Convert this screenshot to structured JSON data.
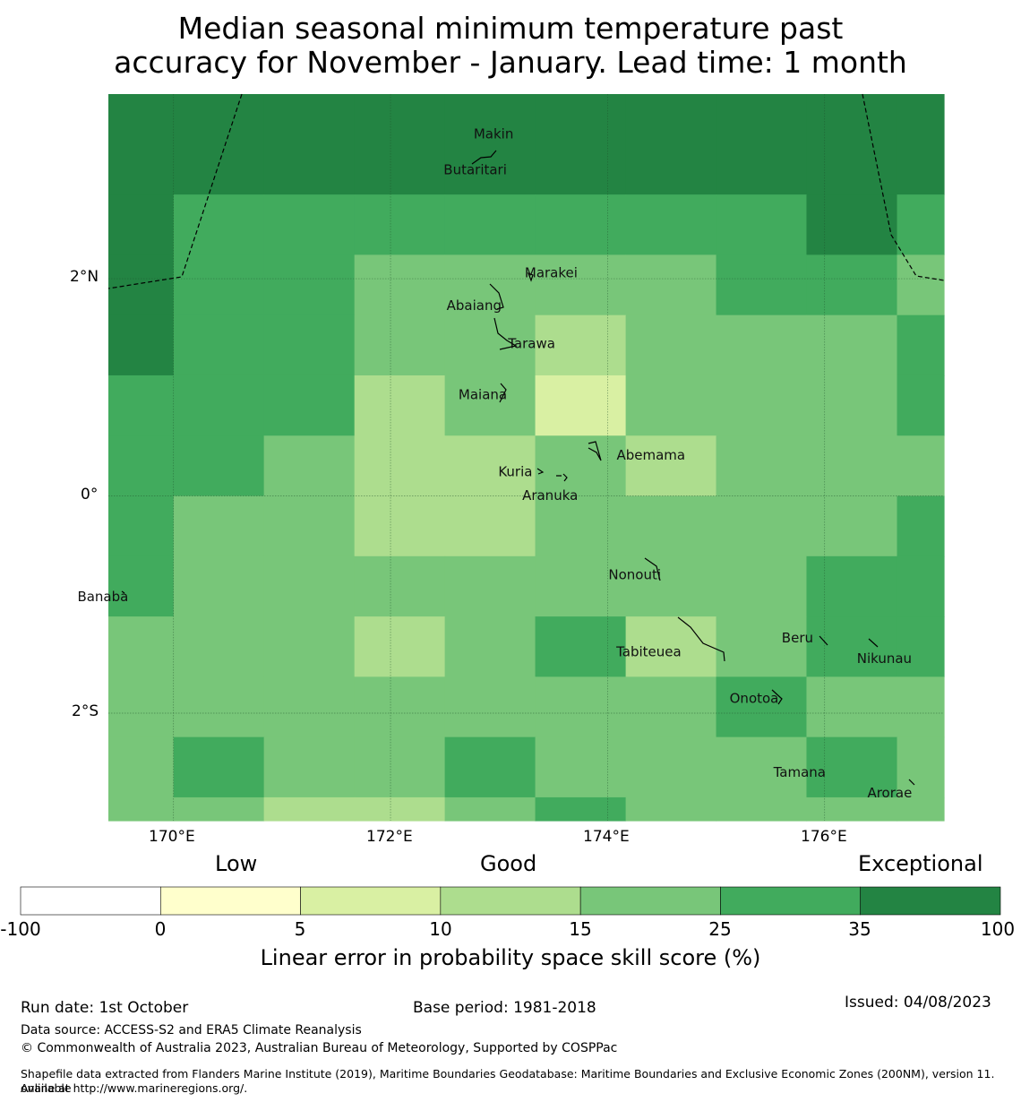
{
  "title": {
    "line1": "Median seasonal minimum temperature past",
    "line2": "accuracy for November - January. Lead time: 1 month"
  },
  "map": {
    "lat_ticks": [
      "2°N",
      "0°",
      "2°S"
    ],
    "lon_ticks": [
      "170°E",
      "172°E",
      "174°E",
      "176°E"
    ],
    "places": [
      {
        "name": "Makin",
        "lon": 172.95,
        "lat": 3.33
      },
      {
        "name": "Butaritari",
        "lon": 172.78,
        "lat": 3.0
      },
      {
        "name": "Marakei",
        "lon": 173.48,
        "lat": 2.05
      },
      {
        "name": "Abaiang",
        "lon": 172.77,
        "lat": 1.75
      },
      {
        "name": "Tarawa",
        "lon": 173.3,
        "lat": 1.4
      },
      {
        "name": "Maiana",
        "lon": 172.85,
        "lat": 0.93
      },
      {
        "name": "Abemama",
        "lon": 174.4,
        "lat": 0.37
      },
      {
        "name": "Kuria",
        "lon": 173.15,
        "lat": 0.22
      },
      {
        "name": "Aranuka",
        "lon": 173.47,
        "lat": 0.0
      },
      {
        "name": "Nonouti",
        "lon": 174.25,
        "lat": -0.73
      },
      {
        "name": "Banaba",
        "lon": 169.35,
        "lat": -0.93
      },
      {
        "name": "Beru",
        "lon": 175.75,
        "lat": -1.31
      },
      {
        "name": "Tabiteuea",
        "lon": 174.38,
        "lat": -1.44
      },
      {
        "name": "Nikunau",
        "lon": 176.55,
        "lat": -1.5
      },
      {
        "name": "Onotoa",
        "lon": 175.35,
        "lat": -1.87
      },
      {
        "name": "Tamana",
        "lon": 175.77,
        "lat": -2.55
      },
      {
        "name": "Arorae",
        "lon": 176.6,
        "lat": -2.74
      }
    ]
  },
  "chart_data": {
    "type": "heatmap",
    "lon_edges": [
      169.4,
      170.0,
      170.833,
      171.667,
      172.5,
      173.333,
      174.167,
      175.0,
      175.833,
      176.667,
      177.1
    ],
    "lat_edges": [
      3.7,
      2.775,
      2.22,
      1.665,
      1.11,
      0.555,
      0.0,
      -0.555,
      -1.11,
      -1.665,
      -2.22,
      -2.775,
      -2.99
    ],
    "levels": [
      [
        6,
        6,
        6,
        6,
        6,
        6,
        6,
        6,
        6,
        6
      ],
      [
        6,
        5,
        5,
        5,
        5,
        5,
        5,
        5,
        6,
        5
      ],
      [
        6,
        5,
        5,
        4,
        4,
        4,
        4,
        5,
        5,
        4
      ],
      [
        6,
        5,
        5,
        4,
        4,
        3,
        4,
        4,
        4,
        5
      ],
      [
        5,
        5,
        5,
        3,
        4,
        2,
        4,
        4,
        4,
        5
      ],
      [
        5,
        5,
        4,
        3,
        3,
        4,
        3,
        4,
        4,
        4
      ],
      [
        5,
        4,
        4,
        3,
        3,
        4,
        4,
        4,
        4,
        5
      ],
      [
        5,
        4,
        4,
        4,
        4,
        4,
        4,
        4,
        5,
        5
      ],
      [
        4,
        4,
        4,
        3,
        4,
        5,
        3,
        4,
        5,
        5
      ],
      [
        4,
        4,
        4,
        4,
        4,
        4,
        4,
        5,
        4,
        4
      ],
      [
        4,
        5,
        4,
        4,
        5,
        4,
        4,
        4,
        5,
        4
      ],
      [
        4,
        4,
        3,
        3,
        4,
        5,
        4,
        4,
        4,
        4
      ]
    ],
    "level_colors": [
      "#ffffff",
      "#ffffcc",
      "#d9f0a3",
      "#addd8e",
      "#78c679",
      "#41ab5d",
      "#238443"
    ],
    "level_bounds": [
      "-100",
      "0",
      "5",
      "10",
      "15",
      "25",
      "35",
      "100"
    ],
    "categories": [
      "Low",
      "Good",
      "Exceptional"
    ],
    "colorbar_label": "Linear error in probability space skill score (%)",
    "grid": true
  },
  "footer": {
    "run_date": "Run date: 1st October",
    "base_period": "Base period: 1981-2018",
    "issued": "Issued: 04/08/2023",
    "data_source": "Data source: ACCESS-S2 and ERA5 Climate Reanalysis",
    "copyright": "© Commonwealth of Australia 2023, Australian Bureau of Meteorology, Supported by COSPPac",
    "shapefile_line1": "Shapefile data extracted from Flanders Marine Institute (2019), Maritime Boundaries Geodatabase: Maritime Boundaries and Exclusive Economic Zones (200NM), version 11. Available",
    "shapefile_line2": "online at http://www.marineregions.org/."
  }
}
